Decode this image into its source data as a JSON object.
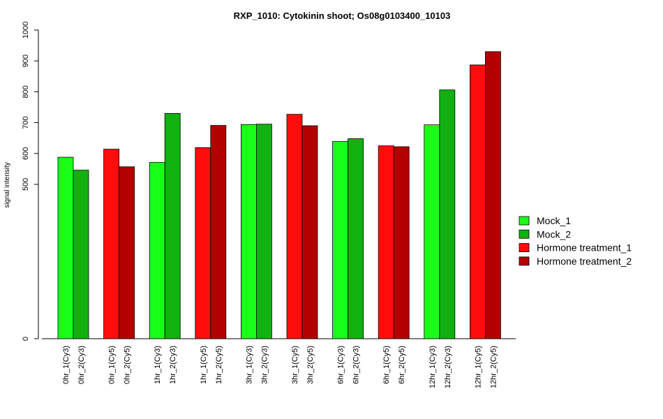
{
  "chart_data": {
    "type": "bar",
    "title": "RXP_1010: Cytokinin shoot; Os08g0103400_10103",
    "xlabel": "",
    "ylabel": "signal intensity",
    "ylim": [
      0,
      1000
    ],
    "yticks": [
      "0",
      "500",
      "600",
      "700",
      "800",
      "900",
      "1000"
    ],
    "grid": false,
    "legend_position": "right",
    "bars": [
      {
        "label": "0hr_1(Cy3)",
        "value": 588,
        "series": "Mock_1"
      },
      {
        "label": "0hr_2(Cy3)",
        "value": 546,
        "series": "Mock_2"
      },
      {
        "label": "0hr_1(Cy5)",
        "value": 614,
        "series": "Hormone treatment_1"
      },
      {
        "label": "0hr_2(Cy5)",
        "value": 557,
        "series": "Hormone treatment_2"
      },
      {
        "label": "1hr_1(Cy3)",
        "value": 571,
        "series": "Mock_1"
      },
      {
        "label": "1hr_2(Cy3)",
        "value": 730,
        "series": "Mock_2"
      },
      {
        "label": "1hr_1(Cy5)",
        "value": 619,
        "series": "Hormone treatment_1"
      },
      {
        "label": "1hr_2(Cy5)",
        "value": 691,
        "series": "Hormone treatment_2"
      },
      {
        "label": "3hr_1(Cy3)",
        "value": 694,
        "series": "Mock_1"
      },
      {
        "label": "3hr_2(Cy3)",
        "value": 695,
        "series": "Mock_2"
      },
      {
        "label": "3hr_1(Cy5)",
        "value": 727,
        "series": "Hormone treatment_1"
      },
      {
        "label": "3hr_2(Cy5)",
        "value": 690,
        "series": "Hormone treatment_2"
      },
      {
        "label": "6hr_1(Cy3)",
        "value": 639,
        "series": "Mock_1"
      },
      {
        "label": "6hr_2(Cy3)",
        "value": 648,
        "series": "Mock_2"
      },
      {
        "label": "6hr_1(Cy5)",
        "value": 625,
        "series": "Hormone treatment_1"
      },
      {
        "label": "6hr_2(Cy5)",
        "value": 622,
        "series": "Hormone treatment_2"
      },
      {
        "label": "12hr_1(Cy3)",
        "value": 693,
        "series": "Mock_1"
      },
      {
        "label": "12hr_2(Cy3)",
        "value": 806,
        "series": "Mock_2"
      },
      {
        "label": "12hr_1(Cy5)",
        "value": 887,
        "series": "Hormone treatment_1"
      },
      {
        "label": "12hr_2(Cy5)",
        "value": 930,
        "series": "Hormone treatment_2"
      }
    ],
    "legend": [
      {
        "name": "Mock_1",
        "color": "#1aff1a"
      },
      {
        "name": "Mock_2",
        "color": "#11b111"
      },
      {
        "name": "Hormone treatment_1",
        "color": "#ff0d0d"
      },
      {
        "name": "Hormone treatment_2",
        "color": "#b30000"
      }
    ]
  }
}
